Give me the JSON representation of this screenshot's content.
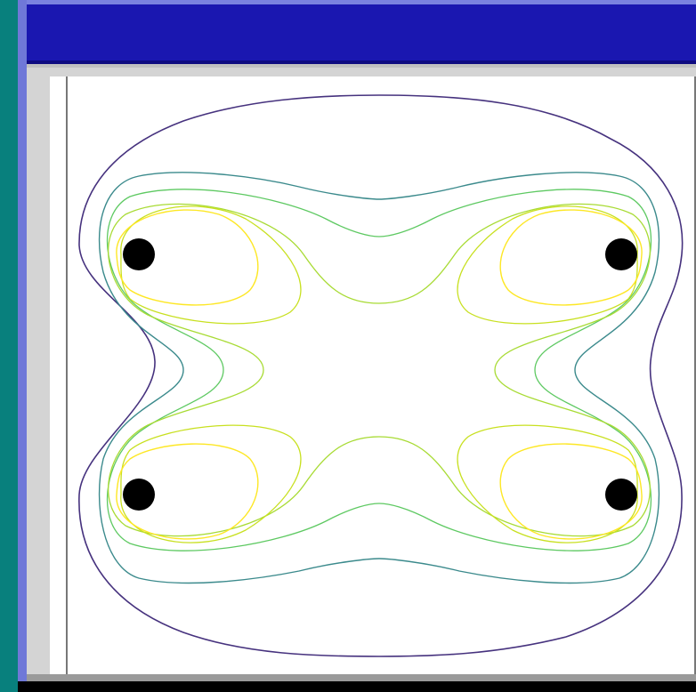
{
  "window": {
    "title": ""
  },
  "plot": {
    "type": "contour",
    "charges": [
      {
        "label": "top-left"
      },
      {
        "label": "top-right"
      },
      {
        "label": "bottom-left"
      },
      {
        "label": "bottom-right"
      }
    ],
    "contour_colors": [
      "#46327e",
      "#3b8a8c",
      "#5ec962",
      "#a8db34",
      "#fde725"
    ],
    "charge_color": "#000000"
  }
}
